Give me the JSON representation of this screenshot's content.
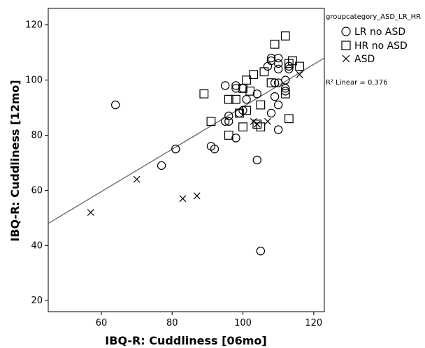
{
  "chart_data": {
    "type": "scatter",
    "title": "",
    "xlabel": "IBQ-R: Cuddliness [06mo]",
    "ylabel": "IBQ-R: Cuddliness [12mo]",
    "xlim": [
      45,
      123
    ],
    "ylim": [
      16,
      126
    ],
    "x_ticks": [
      60,
      80,
      100,
      120
    ],
    "y_ticks": [
      20,
      40,
      60,
      80,
      100,
      120
    ],
    "grid": false,
    "legend": {
      "title": "groupcategory_ASD_LR_HR",
      "position": "top-right",
      "entries": [
        {
          "label": "LR no ASD",
          "marker": "circle"
        },
        {
          "label": "HR no ASD",
          "marker": "square"
        },
        {
          "label": "ASD",
          "marker": "x"
        }
      ]
    },
    "fit_line": {
      "label": "R² Linear = 0.376",
      "start": [
        45,
        48
      ],
      "end": [
        123,
        108
      ]
    },
    "series": [
      {
        "name": "LR no ASD",
        "marker": "circle",
        "points": [
          [
            64,
            91
          ],
          [
            77,
            69
          ],
          [
            81,
            75
          ],
          [
            91,
            76
          ],
          [
            92,
            75
          ],
          [
            95,
            85
          ],
          [
            95,
            98
          ],
          [
            96,
            85
          ],
          [
            96,
            87
          ],
          [
            98,
            79
          ],
          [
            98,
            97
          ],
          [
            98,
            98
          ],
          [
            99,
            88
          ],
          [
            100,
            89
          ],
          [
            100,
            97
          ],
          [
            101,
            93
          ],
          [
            104,
            71
          ],
          [
            104,
            95
          ],
          [
            105,
            38
          ],
          [
            107,
            105
          ],
          [
            108,
            88
          ],
          [
            108,
            107
          ],
          [
            108,
            108
          ],
          [
            109,
            94
          ],
          [
            109,
            99
          ],
          [
            110,
            82
          ],
          [
            110,
            91
          ],
          [
            110,
            99
          ],
          [
            110,
            104
          ],
          [
            110,
            106
          ],
          [
            110,
            108
          ],
          [
            112,
            96
          ],
          [
            112,
            97
          ],
          [
            112,
            100
          ],
          [
            113,
            104
          ],
          [
            113,
            105
          ]
        ]
      },
      {
        "name": "HR no ASD",
        "marker": "square",
        "points": [
          [
            89,
            95
          ],
          [
            91,
            85
          ],
          [
            96,
            80
          ],
          [
            96,
            93
          ],
          [
            98,
            93
          ],
          [
            99,
            88
          ],
          [
            100,
            83
          ],
          [
            100,
            97
          ],
          [
            101,
            89
          ],
          [
            102,
            96
          ],
          [
            103,
            102
          ],
          [
            104,
            84
          ],
          [
            105,
            83
          ],
          [
            105,
            91
          ],
          [
            106,
            103
          ],
          [
            108,
            99
          ],
          [
            109,
            113
          ],
          [
            112,
            95
          ],
          [
            112,
            116
          ],
          [
            113,
            86
          ],
          [
            113,
            106
          ],
          [
            114,
            107
          ],
          [
            116,
            105
          ],
          [
            101,
            100
          ]
        ]
      },
      {
        "name": "ASD",
        "marker": "x",
        "points": [
          [
            57,
            52
          ],
          [
            70,
            64
          ],
          [
            83,
            57
          ],
          [
            87,
            58
          ],
          [
            103,
            85
          ],
          [
            104,
            84
          ],
          [
            107,
            85
          ],
          [
            116,
            102
          ]
        ]
      }
    ]
  }
}
